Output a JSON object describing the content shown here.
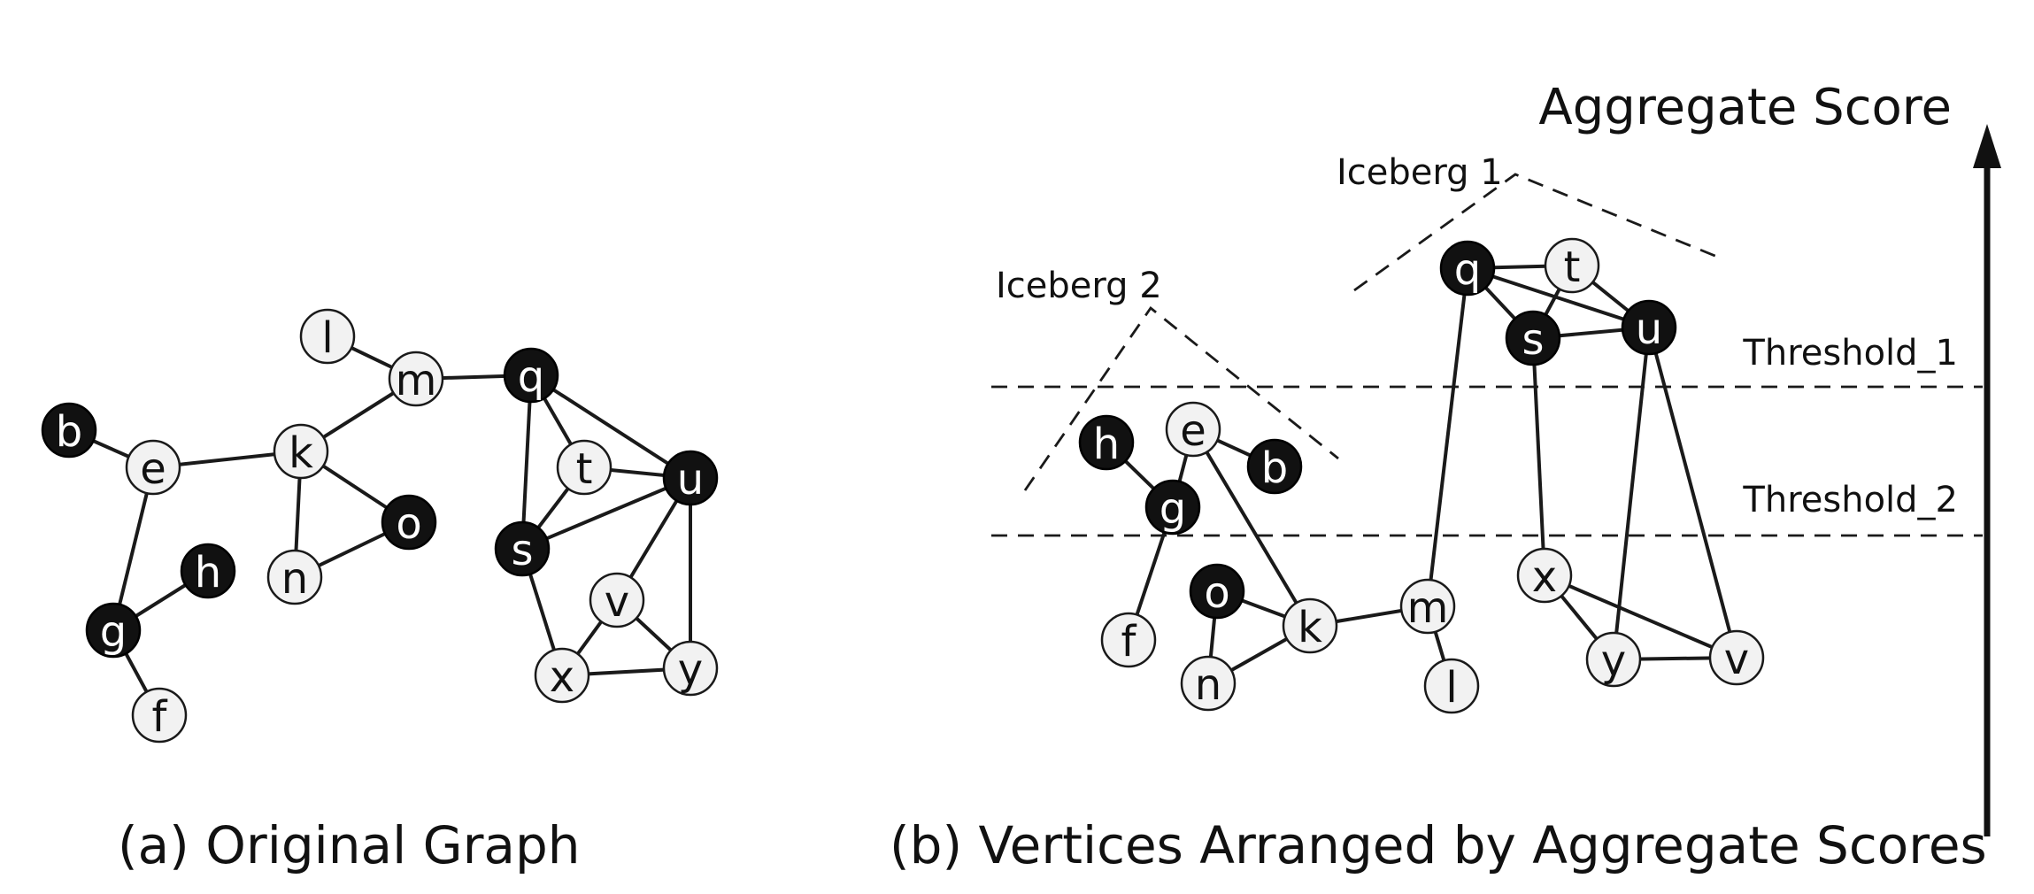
{
  "captions": {
    "a": "(a) Original Graph",
    "b": "(b) Vertices Arranged by Aggregate Scores"
  },
  "annotations": {
    "axis_title": "Aggregate Score",
    "iceberg_1": "Iceberg 1",
    "iceberg_2": "Iceberg 2",
    "threshold_1": "Threshold_1",
    "threshold_2": "Threshold_2"
  },
  "colors": {
    "dark_node": "#111111",
    "light_node": "#f2f2f2",
    "stroke": "#1a1a1a"
  },
  "graph_a": {
    "nodes": [
      {
        "id": "l",
        "label": "l",
        "dark": false
      },
      {
        "id": "m",
        "label": "m",
        "dark": false
      },
      {
        "id": "q",
        "label": "q",
        "dark": true
      },
      {
        "id": "b",
        "label": "b",
        "dark": true
      },
      {
        "id": "e",
        "label": "e",
        "dark": false
      },
      {
        "id": "k",
        "label": "k",
        "dark": false
      },
      {
        "id": "t",
        "label": "t",
        "dark": false
      },
      {
        "id": "u",
        "label": "u",
        "dark": true
      },
      {
        "id": "o",
        "label": "o",
        "dark": true
      },
      {
        "id": "s",
        "label": "s",
        "dark": true
      },
      {
        "id": "h",
        "label": "h",
        "dark": true
      },
      {
        "id": "n",
        "label": "n",
        "dark": false
      },
      {
        "id": "v",
        "label": "v",
        "dark": false
      },
      {
        "id": "g",
        "label": "g",
        "dark": true
      },
      {
        "id": "x",
        "label": "x",
        "dark": false
      },
      {
        "id": "y",
        "label": "y",
        "dark": false
      },
      {
        "id": "f",
        "label": "f",
        "dark": false
      }
    ],
    "edges": [
      [
        "l",
        "m"
      ],
      [
        "m",
        "q"
      ],
      [
        "m",
        "k"
      ],
      [
        "b",
        "e"
      ],
      [
        "e",
        "k"
      ],
      [
        "e",
        "g"
      ],
      [
        "g",
        "h"
      ],
      [
        "g",
        "f"
      ],
      [
        "k",
        "o"
      ],
      [
        "k",
        "n"
      ],
      [
        "n",
        "o"
      ],
      [
        "q",
        "t"
      ],
      [
        "q",
        "u"
      ],
      [
        "q",
        "s"
      ],
      [
        "t",
        "u"
      ],
      [
        "t",
        "s"
      ],
      [
        "s",
        "u"
      ],
      [
        "s",
        "x"
      ],
      [
        "u",
        "v"
      ],
      [
        "u",
        "y"
      ],
      [
        "v",
        "x"
      ],
      [
        "v",
        "y"
      ],
      [
        "x",
        "y"
      ]
    ]
  },
  "graph_b": {
    "nodes": [
      {
        "id": "q",
        "label": "q",
        "dark": true
      },
      {
        "id": "t",
        "label": "t",
        "dark": false
      },
      {
        "id": "s",
        "label": "s",
        "dark": true
      },
      {
        "id": "u",
        "label": "u",
        "dark": true
      },
      {
        "id": "h",
        "label": "h",
        "dark": true
      },
      {
        "id": "e",
        "label": "e",
        "dark": false
      },
      {
        "id": "b",
        "label": "b",
        "dark": true
      },
      {
        "id": "g",
        "label": "g",
        "dark": true
      },
      {
        "id": "x",
        "label": "x",
        "dark": false
      },
      {
        "id": "o",
        "label": "o",
        "dark": true
      },
      {
        "id": "m",
        "label": "m",
        "dark": false
      },
      {
        "id": "k",
        "label": "k",
        "dark": false
      },
      {
        "id": "f",
        "label": "f",
        "dark": false
      },
      {
        "id": "y",
        "label": "y",
        "dark": false
      },
      {
        "id": "v",
        "label": "v",
        "dark": false
      },
      {
        "id": "n",
        "label": "n",
        "dark": false
      },
      {
        "id": "l",
        "label": "l",
        "dark": false
      }
    ],
    "edges": [
      [
        "q",
        "t"
      ],
      [
        "q",
        "s"
      ],
      [
        "q",
        "u"
      ],
      [
        "t",
        "s"
      ],
      [
        "t",
        "u"
      ],
      [
        "s",
        "u"
      ],
      [
        "q",
        "m"
      ],
      [
        "s",
        "x"
      ],
      [
        "u",
        "y"
      ],
      [
        "u",
        "v"
      ],
      [
        "x",
        "y"
      ],
      [
        "x",
        "v"
      ],
      [
        "y",
        "v"
      ],
      [
        "h",
        "g"
      ],
      [
        "g",
        "e"
      ],
      [
        "e",
        "b"
      ],
      [
        "g",
        "f"
      ],
      [
        "e",
        "k"
      ],
      [
        "o",
        "k"
      ],
      [
        "o",
        "n"
      ],
      [
        "n",
        "k"
      ],
      [
        "k",
        "m"
      ],
      [
        "m",
        "l"
      ]
    ]
  }
}
